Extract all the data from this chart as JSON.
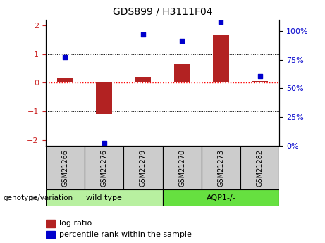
{
  "title": "GDS899 / H3111F04",
  "samples": [
    "GSM21266",
    "GSM21276",
    "GSM21279",
    "GSM21270",
    "GSM21273",
    "GSM21282"
  ],
  "log_ratio": [
    0.15,
    -1.1,
    0.18,
    0.65,
    1.65,
    0.05
  ],
  "percentile_rank": [
    70,
    2,
    88,
    83,
    98,
    55
  ],
  "groups": [
    {
      "label": "wild type",
      "n": 3,
      "color": "#b8f0a0"
    },
    {
      "label": "AQP1-/-",
      "n": 3,
      "color": "#66e040"
    }
  ],
  "bar_color": "#b22222",
  "dot_color": "#0000cc",
  "ylim_left": [
    -2.2,
    2.2
  ],
  "ylim_right": [
    0,
    110
  ],
  "yticks_left": [
    -2,
    -1,
    0,
    1,
    2
  ],
  "yticks_right": [
    0,
    25,
    50,
    75,
    100
  ],
  "yticklabels_right": [
    "0%",
    "25%",
    "50%",
    "75%",
    "100%"
  ],
  "tick_color_left": "#cc2222",
  "tick_color_right": "#0000cc",
  "bar_width": 0.4,
  "legend_labels": [
    "log ratio",
    "percentile rank within the sample"
  ],
  "genotype_label": "genotype/variation"
}
